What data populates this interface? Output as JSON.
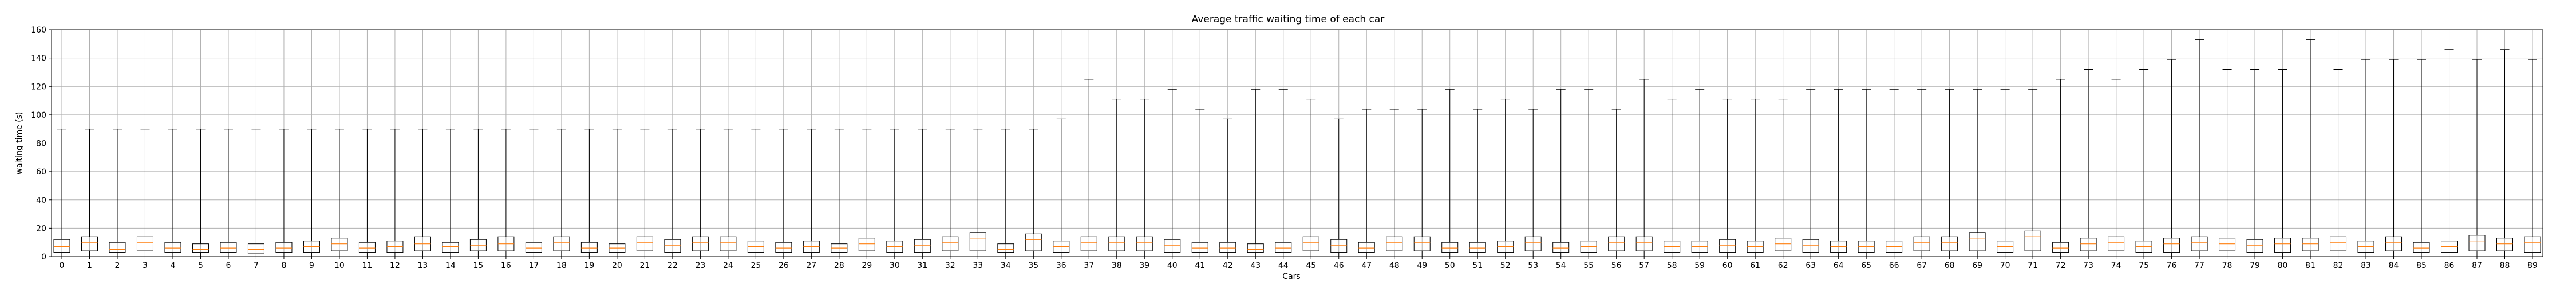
{
  "chart_data": {
    "type": "box",
    "title": "Average traffic waiting time of each car",
    "xlabel": "Cars",
    "ylabel": "waiting time (s)",
    "ylim": [
      0,
      160
    ],
    "yticks": [
      0,
      20,
      40,
      60,
      80,
      100,
      120,
      140,
      160
    ],
    "grid": true,
    "categories": [
      "0",
      "1",
      "2",
      "3",
      "4",
      "5",
      "6",
      "7",
      "8",
      "9",
      "10",
      "11",
      "12",
      "13",
      "14",
      "15",
      "16",
      "17",
      "18",
      "19",
      "20",
      "21",
      "22",
      "23",
      "24",
      "25",
      "26",
      "27",
      "28",
      "29",
      "30",
      "31",
      "32",
      "33",
      "34",
      "35",
      "36",
      "37",
      "38",
      "39",
      "40",
      "41",
      "42",
      "43",
      "44",
      "45",
      "46",
      "47",
      "48",
      "49",
      "50",
      "51",
      "52",
      "53",
      "54",
      "55",
      "56",
      "57",
      "58",
      "59",
      "60",
      "61",
      "62",
      "63",
      "64",
      "65",
      "66",
      "67",
      "68",
      "69",
      "70",
      "71",
      "72",
      "73",
      "74",
      "75",
      "76",
      "77",
      "78",
      "79",
      "80",
      "81",
      "82",
      "83",
      "84",
      "85",
      "86",
      "87",
      "88",
      "89"
    ],
    "whisker_high": [
      90,
      90,
      90,
      90,
      90,
      90,
      90,
      90,
      90,
      90,
      90,
      90,
      90,
      90,
      90,
      90,
      90,
      90,
      90,
      90,
      90,
      90,
      90,
      90,
      90,
      90,
      90,
      90,
      90,
      90,
      90,
      90,
      90,
      90,
      90,
      90,
      97,
      125,
      111,
      111,
      118,
      104,
      97,
      118,
      118,
      111,
      97,
      104,
      104,
      104,
      118,
      104,
      111,
      104,
      118,
      118,
      104,
      125,
      111,
      118,
      111,
      111,
      111,
      118,
      118,
      118,
      118,
      118,
      118,
      118,
      118,
      118,
      125,
      132,
      125,
      132,
      139,
      153,
      132,
      132,
      132,
      153,
      132,
      139,
      139,
      139,
      146,
      139,
      146,
      139
    ],
    "q3": [
      12,
      14,
      10,
      14,
      10,
      9,
      10,
      9,
      10,
      11,
      13,
      10,
      11,
      14,
      10,
      12,
      14,
      10,
      14,
      10,
      9,
      14,
      12,
      14,
      14,
      11,
      10,
      11,
      9,
      13,
      11,
      12,
      14,
      17,
      9,
      16,
      11,
      14,
      14,
      14,
      12,
      10,
      10,
      9,
      10,
      14,
      12,
      10,
      14,
      14,
      10,
      10,
      11,
      14,
      10,
      11,
      14,
      14,
      11,
      11,
      12,
      11,
      13,
      12,
      11,
      11,
      11,
      14,
      14,
      17,
      11,
      18,
      10,
      13,
      14,
      11,
      13,
      14,
      13,
      12,
      13,
      13,
      14,
      11,
      14,
      10,
      11,
      15,
      13,
      14
    ],
    "median": [
      7,
      10,
      5,
      10,
      6,
      5,
      6,
      5,
      6,
      7,
      9,
      6,
      7,
      9,
      7,
      8,
      9,
      6,
      10,
      6,
      6,
      10,
      8,
      10,
      10,
      7,
      6,
      7,
      6,
      9,
      7,
      8,
      10,
      13,
      5,
      12,
      7,
      10,
      10,
      10,
      8,
      6,
      6,
      5,
      6,
      10,
      8,
      6,
      10,
      10,
      6,
      6,
      7,
      10,
      6,
      7,
      10,
      10,
      7,
      7,
      8,
      7,
      9,
      8,
      7,
      7,
      7,
      10,
      10,
      13,
      7,
      14,
      6,
      9,
      10,
      7,
      9,
      10,
      9,
      8,
      9,
      9,
      10,
      7,
      10,
      6,
      7,
      11,
      9,
      10
    ],
    "q1": [
      3,
      4,
      3,
      4,
      3,
      3,
      3,
      2,
      3,
      3,
      4,
      3,
      3,
      4,
      3,
      4,
      4,
      3,
      4,
      3,
      3,
      4,
      3,
      4,
      4,
      3,
      3,
      3,
      3,
      4,
      3,
      3,
      4,
      4,
      3,
      4,
      3,
      4,
      4,
      4,
      3,
      3,
      3,
      3,
      3,
      4,
      3,
      3,
      4,
      4,
      3,
      3,
      3,
      4,
      3,
      3,
      4,
      4,
      3,
      3,
      3,
      3,
      4,
      3,
      3,
      3,
      3,
      4,
      4,
      4,
      3,
      4,
      3,
      4,
      4,
      3,
      3,
      4,
      4,
      3,
      3,
      4,
      4,
      3,
      4,
      3,
      3,
      4,
      4,
      3
    ],
    "whisker_low": [
      0,
      0,
      0,
      0,
      0,
      0,
      0,
      0,
      0,
      0,
      0,
      0,
      0,
      0,
      0,
      0,
      0,
      0,
      0,
      0,
      0,
      0,
      0,
      0,
      0,
      0,
      0,
      0,
      0,
      0,
      0,
      0,
      0,
      0,
      0,
      0,
      0,
      0,
      0,
      0,
      0,
      0,
      0,
      0,
      0,
      0,
      0,
      0,
      0,
      0,
      0,
      0,
      0,
      0,
      0,
      0,
      0,
      0,
      0,
      0,
      0,
      0,
      0,
      0,
      0,
      0,
      0,
      0,
      0,
      0,
      0,
      0,
      0,
      0,
      0,
      0,
      0,
      0,
      0,
      0,
      0,
      0,
      0,
      0,
      0,
      0,
      0,
      0,
      0,
      0
    ],
    "median_color": "#ff7f0e",
    "grid_color": "#b0b0b0"
  }
}
